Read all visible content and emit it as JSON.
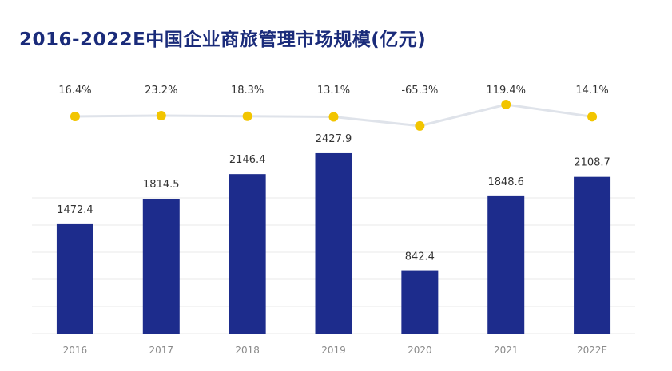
{
  "colors": {
    "bar": "#1d2c8c",
    "line": "#dfe3ea",
    "marker": "#f2c500",
    "grid": "#e8e8e8",
    "title": "#1a2b7a"
  },
  "chart_data": {
    "type": "bar",
    "title": "2016-2022E中国企业商旅管理市场规模(亿元)",
    "categories": [
      "2016",
      "2017",
      "2018",
      "2019",
      "2020",
      "2021",
      "2022E"
    ],
    "series": [
      {
        "values": [
          1472.4,
          1814.5,
          2146.4,
          2427.9,
          842.4,
          1848.6,
          2108.7
        ]
      }
    ],
    "value_labels": [
      "1472.4",
      "1814.5",
      "2146.4",
      "2427.9",
      "842.4",
      "1848.6",
      "2108.7"
    ],
    "growth": {
      "type": "line",
      "values": [
        16.4,
        23.2,
        18.3,
        13.1,
        -65.3,
        119.4,
        14.1
      ],
      "labels": [
        "16.4%",
        "23.2%",
        "18.3%",
        "13.1%",
        "-65.3%",
        "119.4%",
        "14.1%"
      ]
    },
    "ylim": [
      0,
      2900
    ],
    "grid": true
  }
}
